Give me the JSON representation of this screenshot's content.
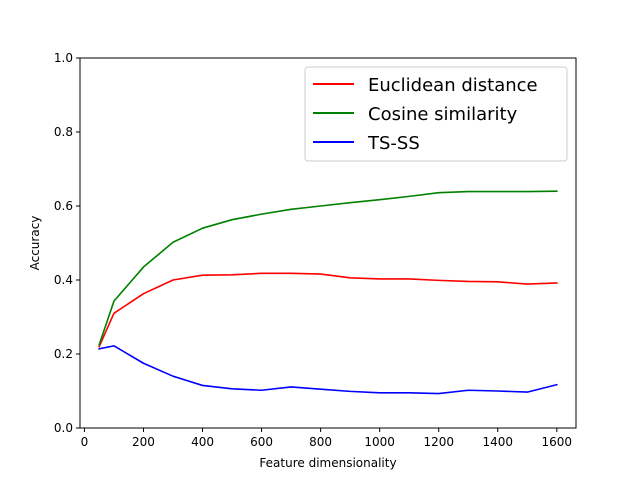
{
  "chart_data": {
    "type": "line",
    "title": "",
    "xlabel": "Feature dimensionality",
    "ylabel": "Accuracy",
    "xlim": [
      -15,
      1665
    ],
    "ylim": [
      0.0,
      1.0
    ],
    "xticks": [
      0,
      200,
      400,
      600,
      800,
      1000,
      1200,
      1400,
      1600
    ],
    "yticks": [
      0.0,
      0.2,
      0.4,
      0.6,
      0.8,
      1.0
    ],
    "xtick_labels": [
      "0",
      "200",
      "400",
      "600",
      "800",
      "1000",
      "1200",
      "1400",
      "1600"
    ],
    "ytick_labels": [
      "0.0",
      "0.2",
      "0.4",
      "0.6",
      "0.8",
      "1.0"
    ],
    "grid": false,
    "legend_position": "upper right",
    "x": [
      50,
      100,
      200,
      300,
      400,
      500,
      600,
      700,
      800,
      900,
      1000,
      1100,
      1200,
      1300,
      1400,
      1500,
      1600
    ],
    "series": [
      {
        "name": "Euclidean distance",
        "color": "#ff0000",
        "values": [
          0.22,
          0.31,
          0.363,
          0.4,
          0.413,
          0.414,
          0.418,
          0.418,
          0.416,
          0.406,
          0.403,
          0.403,
          0.399,
          0.396,
          0.395,
          0.389,
          0.392
        ]
      },
      {
        "name": "Cosine similarity",
        "color": "#008000",
        "values": [
          0.225,
          0.343,
          0.435,
          0.502,
          0.54,
          0.563,
          0.578,
          0.591,
          0.6,
          0.609,
          0.617,
          0.626,
          0.636,
          0.639,
          0.639,
          0.639,
          0.64
        ]
      },
      {
        "name": "TS-SS",
        "color": "#0000ff",
        "values": [
          0.214,
          0.222,
          0.175,
          0.14,
          0.115,
          0.106,
          0.102,
          0.111,
          0.105,
          0.099,
          0.095,
          0.095,
          0.093,
          0.102,
          0.1,
          0.097,
          0.117
        ]
      }
    ]
  }
}
